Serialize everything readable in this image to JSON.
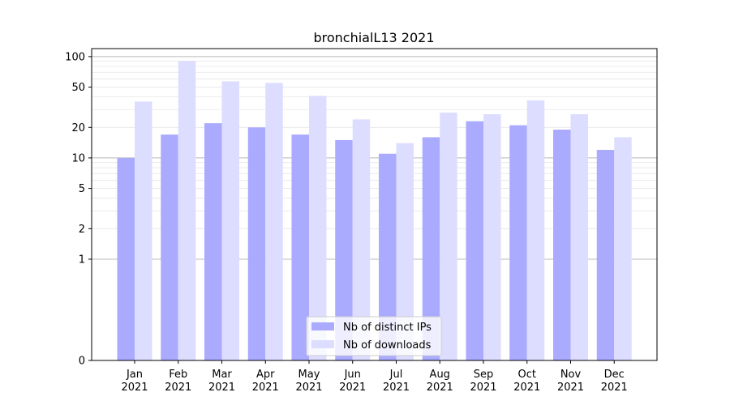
{
  "chart_data": {
    "type": "bar",
    "title": "bronchialL13 2021",
    "xlabel": "",
    "ylabel": "",
    "y_scale": "symlog",
    "ylim": [
      0,
      120
    ],
    "y_ticks": [
      0,
      1,
      2,
      5,
      10,
      20,
      50,
      100
    ],
    "categories": [
      "Jan\n2021",
      "Feb\n2021",
      "Mar\n2021",
      "Apr\n2021",
      "May\n2021",
      "Jun\n2021",
      "Jul\n2021",
      "Aug\n2021",
      "Sep\n2021",
      "Oct\n2021",
      "Nov\n2021",
      "Dec\n2021"
    ],
    "series": [
      {
        "name": "Nb of distinct IPs",
        "color": "#aaaaff",
        "values": [
          10,
          17,
          22,
          20,
          17,
          15,
          11,
          16,
          23,
          21,
          19,
          12
        ]
      },
      {
        "name": "Nb of downloads",
        "color": "#ddddff",
        "values": [
          36,
          91,
          57,
          55,
          41,
          24,
          14,
          28,
          27,
          37,
          27,
          16
        ]
      }
    ],
    "grid": true,
    "legend_position": "lower center"
  }
}
